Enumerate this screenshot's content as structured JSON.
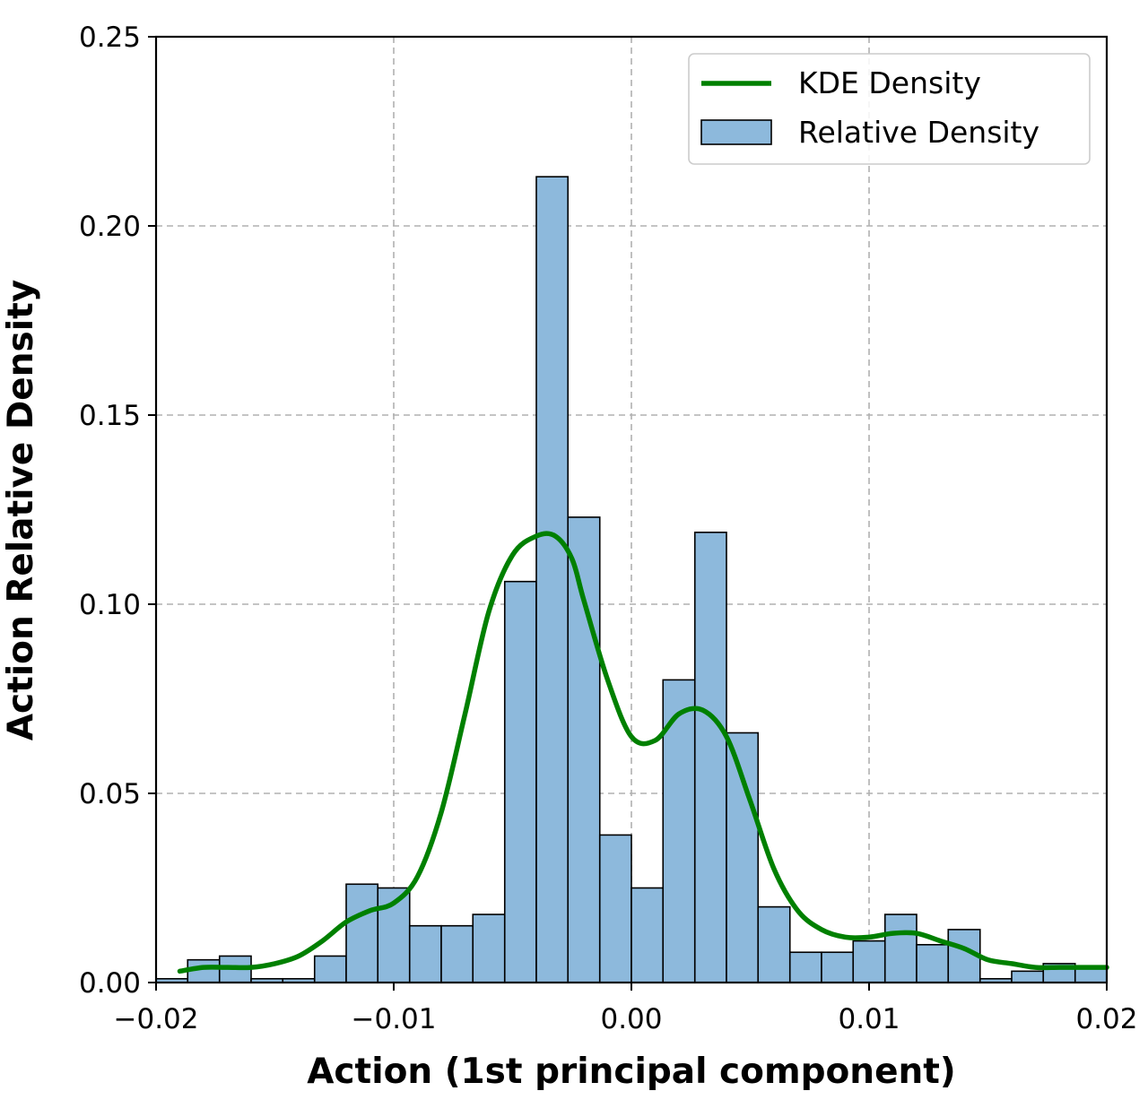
{
  "chart_data": {
    "type": "bar",
    "xlabel": "Action (1st principal component)",
    "ylabel": "Action Relative Density",
    "xlim": [
      -0.02,
      0.02
    ],
    "ylim": [
      0,
      0.25
    ],
    "xticks": [
      "−0.02",
      "−0.01",
      "0.00",
      "0.01",
      "0.02"
    ],
    "xtick_values": [
      -0.02,
      -0.01,
      0.0,
      0.01,
      0.02
    ],
    "yticks": [
      "0.00",
      "0.05",
      "0.10",
      "0.15",
      "0.20",
      "0.25"
    ],
    "ytick_values": [
      0.0,
      0.05,
      0.1,
      0.15,
      0.2,
      0.25
    ],
    "grid": true,
    "legend_position": "top-right",
    "series": [
      {
        "name": "Relative Density",
        "kind": "histogram",
        "color": "#8db9dc",
        "edgecolor": "#000000",
        "bin_edges": [
          -0.02,
          -0.01867,
          -0.01733,
          -0.016,
          -0.01467,
          -0.01333,
          -0.012,
          -0.01067,
          -0.00933,
          -0.008,
          -0.00667,
          -0.00533,
          -0.004,
          -0.00267,
          -0.00133,
          0.0,
          0.00133,
          0.00267,
          0.004,
          0.00533,
          0.00667,
          0.008,
          0.00933,
          0.01067,
          0.012,
          0.01333,
          0.01467,
          0.016,
          0.01733,
          0.01867,
          0.02
        ],
        "values": [
          0.001,
          0.006,
          0.007,
          0.001,
          0.001,
          0.007,
          0.026,
          0.025,
          0.015,
          0.015,
          0.018,
          0.106,
          0.213,
          0.123,
          0.039,
          0.025,
          0.08,
          0.119,
          0.066,
          0.02,
          0.008,
          0.008,
          0.011,
          0.018,
          0.01,
          0.014,
          0.001,
          0.003,
          0.005,
          0.004
        ]
      },
      {
        "name": "KDE Density",
        "kind": "line",
        "color": "#008000",
        "x": [
          -0.019,
          -0.018,
          -0.017,
          -0.016,
          -0.015,
          -0.014,
          -0.013,
          -0.012,
          -0.011,
          -0.01,
          -0.009,
          -0.008,
          -0.007,
          -0.006,
          -0.005,
          -0.004,
          -0.0032,
          -0.0025,
          -0.002,
          -0.001,
          0.0,
          0.001,
          0.002,
          0.003,
          0.004,
          0.005,
          0.006,
          0.007,
          0.008,
          0.009,
          0.01,
          0.011,
          0.012,
          0.013,
          0.014,
          0.015,
          0.016,
          0.017,
          0.018,
          0.019,
          0.02
        ],
        "y": [
          0.003,
          0.004,
          0.004,
          0.004,
          0.005,
          0.007,
          0.011,
          0.016,
          0.019,
          0.021,
          0.028,
          0.045,
          0.071,
          0.098,
          0.113,
          0.118,
          0.118,
          0.112,
          0.101,
          0.08,
          0.065,
          0.064,
          0.071,
          0.072,
          0.065,
          0.048,
          0.03,
          0.019,
          0.014,
          0.012,
          0.012,
          0.013,
          0.013,
          0.011,
          0.009,
          0.006,
          0.005,
          0.004,
          0.004,
          0.004,
          0.004
        ]
      }
    ],
    "legend": {
      "kde_label": "KDE Density",
      "hist_label": "Relative Density"
    }
  }
}
